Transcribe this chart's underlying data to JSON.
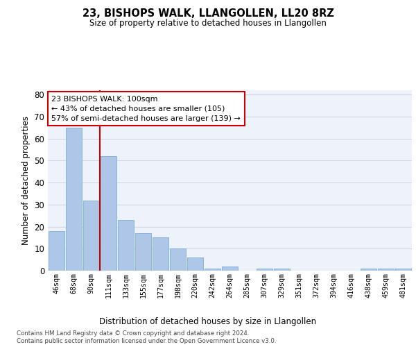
{
  "title": "23, BISHOPS WALK, LLANGOLLEN, LL20 8RZ",
  "subtitle": "Size of property relative to detached houses in Llangollen",
  "xlabel": "Distribution of detached houses by size in Llangollen",
  "ylabel": "Number of detached properties",
  "categories": [
    "46sqm",
    "68sqm",
    "90sqm",
    "111sqm",
    "133sqm",
    "155sqm",
    "177sqm",
    "198sqm",
    "220sqm",
    "242sqm",
    "264sqm",
    "285sqm",
    "307sqm",
    "329sqm",
    "351sqm",
    "372sqm",
    "394sqm",
    "416sqm",
    "438sqm",
    "459sqm",
    "481sqm"
  ],
  "values": [
    18,
    65,
    32,
    52,
    23,
    17,
    15,
    10,
    6,
    1,
    2,
    0,
    1,
    1,
    0,
    0,
    0,
    0,
    1,
    1,
    1
  ],
  "bar_color": "#aec6e8",
  "bar_edge_color": "#7aafd4",
  "grid_color": "#d0d8e8",
  "background_color": "#eef2fa",
  "property_line_x": 2.5,
  "annotation_title": "23 BISHOPS WALK: 100sqm",
  "annotation_line1": "← 43% of detached houses are smaller (105)",
  "annotation_line2": "57% of semi-detached houses are larger (139) →",
  "annotation_box_color": "#cc0000",
  "ylim": [
    0,
    82
  ],
  "yticks": [
    0,
    10,
    20,
    30,
    40,
    50,
    60,
    70,
    80
  ],
  "footer_line1": "Contains HM Land Registry data © Crown copyright and database right 2024.",
  "footer_line2": "Contains public sector information licensed under the Open Government Licence v3.0."
}
